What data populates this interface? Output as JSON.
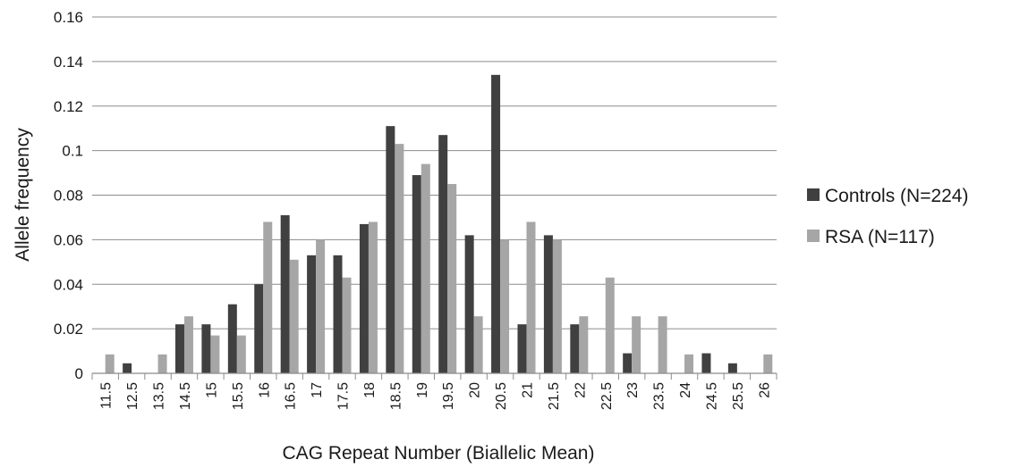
{
  "chart_data": {
    "type": "bar",
    "title": "",
    "xlabel": "CAG Repeat Number (Biallelic Mean)",
    "ylabel": "Allele frequency",
    "ylim": [
      0,
      0.16
    ],
    "yticks": [
      "0",
      "0.02",
      "0.04",
      "0.06",
      "0.08",
      "0.1",
      "0.12",
      "0.14",
      "0.16"
    ],
    "grid": true,
    "legend_position": "right",
    "categories": [
      "11.5",
      "12.5",
      "13.5",
      "14.5",
      "15",
      "15.5",
      "16",
      "16.5",
      "17",
      "17.5",
      "18",
      "18.5",
      "19",
      "19.5",
      "20",
      "20.5",
      "21",
      "21.5",
      "22",
      "22.5",
      "23",
      "23.5",
      "24",
      "24.5",
      "25.5",
      "26"
    ],
    "series": [
      {
        "name": "Controls (N=224)",
        "color": "#404040",
        "values": [
          0,
          0.0045,
          0,
          0.022,
          0.022,
          0.031,
          0.04,
          0.071,
          0.053,
          0.053,
          0.067,
          0.111,
          0.089,
          0.107,
          0.062,
          0.134,
          0.022,
          0.062,
          0.022,
          0,
          0.009,
          0,
          0,
          0.009,
          0.0045,
          0
        ]
      },
      {
        "name": "RSA (N=117)",
        "color": "#a6a6a6",
        "values": [
          0.0085,
          0,
          0.0085,
          0.0256,
          0.017,
          0.017,
          0.068,
          0.051,
          0.06,
          0.043,
          0.068,
          0.103,
          0.094,
          0.085,
          0.0256,
          0.06,
          0.068,
          0.06,
          0.0256,
          0.043,
          0.0256,
          0.0256,
          0.0085,
          0,
          0,
          0.0085
        ]
      }
    ]
  },
  "colors": {
    "grid": "#8c8c8c",
    "axis": "#8c8c8c"
  }
}
